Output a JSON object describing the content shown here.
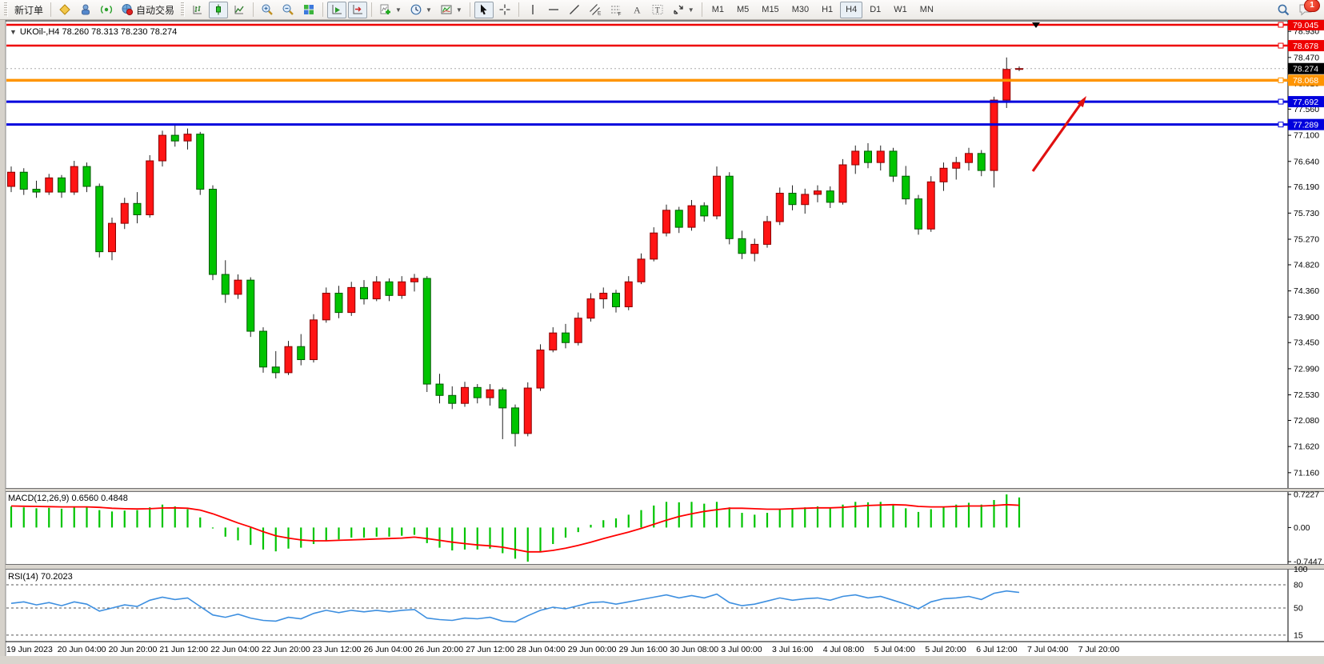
{
  "window": {
    "notification_count": "1"
  },
  "toolbar": {
    "new_order": "新订单",
    "autotrading": "自动交易",
    "timeframes": [
      "M1",
      "M5",
      "M15",
      "M30",
      "H1",
      "H4",
      "D1",
      "W1",
      "MN"
    ],
    "active_timeframe": "H4"
  },
  "chart": {
    "title": "UKOil-,H4 78.260 78.313 78.230 78.274",
    "symbol": "UKOil-",
    "period": "H4",
    "open": "78.260",
    "high": "78.313",
    "low": "78.230",
    "close": "78.274"
  },
  "macd_pane": {
    "label": "MACD(12,26,9) 0.6560 0.4848",
    "axis_max": "0.7227",
    "axis_zero": "0.00",
    "axis_min": "-0.7447"
  },
  "rsi_pane": {
    "label": "RSI(14) 70.2023",
    "axis_labels": [
      "100",
      "80",
      "50",
      "15"
    ],
    "dashed_levels": [
      80,
      50,
      15
    ]
  },
  "price_axis": {
    "ticks": [
      "78.930",
      "78.470",
      "78.010",
      "77.560",
      "77.100",
      "76.640",
      "76.190",
      "75.730",
      "75.270",
      "74.820",
      "74.360",
      "73.900",
      "73.450",
      "72.990",
      "72.530",
      "72.080",
      "71.620",
      "71.160"
    ],
    "current_price": {
      "label": "78.274",
      "value": 78.274,
      "badge_color": "#000000"
    }
  },
  "levels": [
    {
      "label": "79.045",
      "value": 79.045,
      "color": "#ee0000",
      "width": 2.5
    },
    {
      "label": "78.678",
      "value": 78.678,
      "color": "#ee0000",
      "width": 2.5
    },
    {
      "label": "78.068",
      "value": 78.068,
      "color": "#ff9400",
      "width": 3.5
    },
    {
      "label": "77.692",
      "value": 77.692,
      "color": "#0000dd",
      "width": 3
    },
    {
      "label": "77.289",
      "value": 77.289,
      "color": "#0000dd",
      "width": 3
    }
  ],
  "annotation": {
    "type": "arrow",
    "color": "#e01010"
  },
  "chart_data": {
    "type": "candlestick",
    "title": "UKOil- H4",
    "ylim": [
      71.16,
      79.045
    ],
    "grid": false,
    "colors": {
      "up": "#ff1414",
      "up_border": "#8a0000",
      "down": "#00c400",
      "down_border": "#005a00",
      "wick": "#222222",
      "macd_hist": "#00c400",
      "macd_signal": "#ff0000",
      "rsi_line": "#3d8fe0"
    },
    "x_labels": [
      "19 Jun 2023",
      "20 Jun 04:00",
      "20 Jun 20:00",
      "21 Jun 12:00",
      "22 Jun 04:00",
      "22 Jun 20:00",
      "23 Jun 12:00",
      "26 Jun 04:00",
      "26 Jun 20:00",
      "27 Jun 12:00",
      "28 Jun 04:00",
      "29 Jun 00:00",
      "29 Jun 16:00",
      "30 Jun 08:00",
      "3 Jul 00:00",
      "3 Jul 16:00",
      "4 Jul 08:00",
      "5 Jul 04:00",
      "5 Jul 20:00",
      "6 Jul 12:00",
      "7 Jul 04:00",
      "7 Jul 20:00"
    ],
    "candles": [
      [
        76.2,
        76.55,
        76.1,
        76.45
      ],
      [
        76.45,
        76.52,
        76.05,
        76.15
      ],
      [
        76.15,
        76.3,
        76.0,
        76.1
      ],
      [
        76.1,
        76.42,
        76.05,
        76.35
      ],
      [
        76.35,
        76.4,
        76.0,
        76.1
      ],
      [
        76.1,
        76.65,
        76.05,
        76.55
      ],
      [
        76.55,
        76.62,
        76.1,
        76.2
      ],
      [
        76.2,
        76.25,
        74.95,
        75.05
      ],
      [
        75.05,
        75.65,
        74.9,
        75.55
      ],
      [
        75.55,
        76.0,
        75.45,
        75.9
      ],
      [
        75.9,
        76.1,
        75.55,
        75.7
      ],
      [
        75.7,
        76.75,
        75.65,
        76.65
      ],
      [
        76.65,
        77.18,
        76.55,
        77.1
      ],
      [
        77.1,
        77.3,
        76.9,
        77.0
      ],
      [
        77.0,
        77.22,
        76.85,
        77.12
      ],
      [
        77.12,
        77.16,
        76.05,
        76.15
      ],
      [
        76.15,
        76.22,
        74.55,
        74.65
      ],
      [
        74.65,
        74.9,
        74.15,
        74.3
      ],
      [
        74.3,
        74.65,
        74.22,
        74.55
      ],
      [
        74.55,
        74.6,
        73.55,
        73.65
      ],
      [
        73.65,
        73.72,
        72.92,
        73.02
      ],
      [
        73.02,
        73.3,
        72.82,
        72.92
      ],
      [
        72.92,
        73.48,
        72.88,
        73.38
      ],
      [
        73.38,
        73.6,
        73.05,
        73.15
      ],
      [
        73.15,
        73.95,
        73.1,
        73.85
      ],
      [
        73.85,
        74.42,
        73.8,
        74.32
      ],
      [
        74.32,
        74.45,
        73.88,
        73.98
      ],
      [
        73.98,
        74.52,
        73.92,
        74.42
      ],
      [
        74.42,
        74.55,
        74.12,
        74.22
      ],
      [
        74.22,
        74.62,
        74.18,
        74.52
      ],
      [
        74.52,
        74.58,
        74.18,
        74.28
      ],
      [
        74.28,
        74.62,
        74.22,
        74.52
      ],
      [
        74.52,
        74.66,
        74.35,
        74.58
      ],
      [
        74.58,
        74.62,
        72.58,
        72.72
      ],
      [
        72.72,
        72.9,
        72.38,
        72.52
      ],
      [
        72.52,
        72.68,
        72.28,
        72.38
      ],
      [
        72.38,
        72.76,
        72.32,
        72.66
      ],
      [
        72.66,
        72.72,
        72.38,
        72.48
      ],
      [
        72.48,
        72.72,
        72.34,
        72.62
      ],
      [
        72.62,
        72.66,
        71.75,
        72.3
      ],
      [
        72.3,
        72.36,
        71.62,
        71.85
      ],
      [
        71.85,
        72.75,
        71.8,
        72.65
      ],
      [
        72.65,
        73.42,
        72.6,
        73.32
      ],
      [
        73.32,
        73.72,
        73.28,
        73.62
      ],
      [
        73.62,
        73.78,
        73.35,
        73.45
      ],
      [
        73.45,
        73.98,
        73.4,
        73.88
      ],
      [
        73.88,
        74.32,
        73.82,
        74.22
      ],
      [
        74.22,
        74.42,
        74.05,
        74.32
      ],
      [
        74.32,
        74.38,
        73.98,
        74.08
      ],
      [
        74.08,
        74.62,
        74.02,
        74.52
      ],
      [
        74.52,
        75.02,
        74.48,
        74.92
      ],
      [
        74.92,
        75.48,
        74.88,
        75.38
      ],
      [
        75.38,
        75.88,
        75.32,
        75.78
      ],
      [
        75.78,
        75.84,
        75.38,
        75.48
      ],
      [
        75.48,
        75.96,
        75.42,
        75.86
      ],
      [
        75.86,
        75.92,
        75.58,
        75.68
      ],
      [
        75.68,
        76.55,
        75.62,
        76.38
      ],
      [
        76.38,
        76.45,
        75.18,
        75.28
      ],
      [
        75.28,
        75.42,
        74.92,
        75.02
      ],
      [
        75.02,
        75.28,
        74.88,
        75.18
      ],
      [
        75.18,
        75.68,
        75.12,
        75.58
      ],
      [
        75.58,
        76.18,
        75.52,
        76.08
      ],
      [
        76.08,
        76.22,
        75.78,
        75.88
      ],
      [
        75.88,
        76.16,
        75.72,
        76.06
      ],
      [
        76.06,
        76.22,
        75.92,
        76.12
      ],
      [
        76.12,
        76.2,
        75.82,
        75.92
      ],
      [
        75.92,
        76.68,
        75.88,
        76.58
      ],
      [
        76.58,
        76.92,
        76.42,
        76.82
      ],
      [
        76.82,
        76.96,
        76.52,
        76.62
      ],
      [
        76.62,
        76.92,
        76.48,
        76.82
      ],
      [
        76.82,
        76.88,
        76.28,
        76.38
      ],
      [
        76.38,
        76.56,
        75.88,
        75.98
      ],
      [
        75.98,
        76.05,
        75.35,
        75.45
      ],
      [
        75.45,
        76.38,
        75.4,
        76.28
      ],
      [
        76.28,
        76.62,
        76.12,
        76.52
      ],
      [
        76.52,
        76.72,
        76.32,
        76.62
      ],
      [
        76.62,
        76.88,
        76.48,
        76.78
      ],
      [
        76.78,
        76.84,
        76.38,
        76.48
      ],
      [
        76.48,
        77.78,
        76.18,
        77.72
      ],
      [
        77.72,
        78.47,
        77.58,
        78.26
      ],
      [
        78.26,
        78.313,
        78.23,
        78.274
      ]
    ],
    "macd": {
      "range": [
        -0.7447,
        0.7227
      ],
      "histogram": [
        0.46,
        0.44,
        0.42,
        0.43,
        0.41,
        0.44,
        0.46,
        0.38,
        0.35,
        0.37,
        0.38,
        0.44,
        0.5,
        0.46,
        0.4,
        0.22,
        -0.02,
        -0.2,
        -0.28,
        -0.38,
        -0.48,
        -0.52,
        -0.46,
        -0.44,
        -0.36,
        -0.28,
        -0.26,
        -0.22,
        -0.22,
        -0.2,
        -0.2,
        -0.18,
        -0.16,
        -0.34,
        -0.44,
        -0.5,
        -0.48,
        -0.48,
        -0.46,
        -0.56,
        -0.68,
        -0.7447,
        -0.52,
        -0.36,
        -0.22,
        -0.1,
        0.06,
        0.16,
        0.2,
        0.28,
        0.38,
        0.48,
        0.56,
        0.55,
        0.56,
        0.52,
        0.56,
        0.44,
        0.32,
        0.28,
        0.32,
        0.4,
        0.42,
        0.44,
        0.46,
        0.44,
        0.5,
        0.56,
        0.55,
        0.56,
        0.5,
        0.42,
        0.34,
        0.4,
        0.46,
        0.5,
        0.54,
        0.5,
        0.6,
        0.7227,
        0.656
      ],
      "signal": [
        0.47,
        0.465,
        0.46,
        0.455,
        0.45,
        0.45,
        0.45,
        0.44,
        0.42,
        0.41,
        0.405,
        0.41,
        0.425,
        0.43,
        0.42,
        0.38,
        0.3,
        0.2,
        0.1,
        0.01,
        -0.09,
        -0.18,
        -0.23,
        -0.27,
        -0.29,
        -0.29,
        -0.28,
        -0.27,
        -0.26,
        -0.25,
        -0.24,
        -0.23,
        -0.21,
        -0.24,
        -0.28,
        -0.32,
        -0.35,
        -0.38,
        -0.4,
        -0.43,
        -0.48,
        -0.53,
        -0.53,
        -0.5,
        -0.45,
        -0.39,
        -0.32,
        -0.24,
        -0.17,
        -0.1,
        -0.02,
        0.07,
        0.16,
        0.24,
        0.3,
        0.35,
        0.39,
        0.42,
        0.42,
        0.41,
        0.4,
        0.4,
        0.41,
        0.42,
        0.43,
        0.43,
        0.44,
        0.46,
        0.48,
        0.49,
        0.5,
        0.49,
        0.46,
        0.45,
        0.45,
        0.46,
        0.47,
        0.47,
        0.48,
        0.5,
        0.4848
      ]
    },
    "rsi": {
      "range": [
        0,
        100
      ],
      "values": [
        56,
        58,
        54,
        57,
        53,
        58,
        55,
        46,
        50,
        54,
        52,
        60,
        64,
        61,
        63,
        52,
        41,
        38,
        42,
        37,
        34,
        33,
        38,
        36,
        43,
        47,
        44,
        47,
        45,
        47,
        45,
        47,
        48,
        37,
        35,
        34,
        37,
        36,
        38,
        33,
        32,
        40,
        47,
        51,
        49,
        53,
        57,
        58,
        55,
        58,
        61,
        64,
        67,
        63,
        66,
        63,
        68,
        57,
        53,
        55,
        59,
        63,
        60,
        62,
        63,
        60,
        65,
        67,
        63,
        65,
        60,
        55,
        49,
        58,
        62,
        63,
        65,
        61,
        69,
        72,
        70.2023
      ]
    }
  }
}
